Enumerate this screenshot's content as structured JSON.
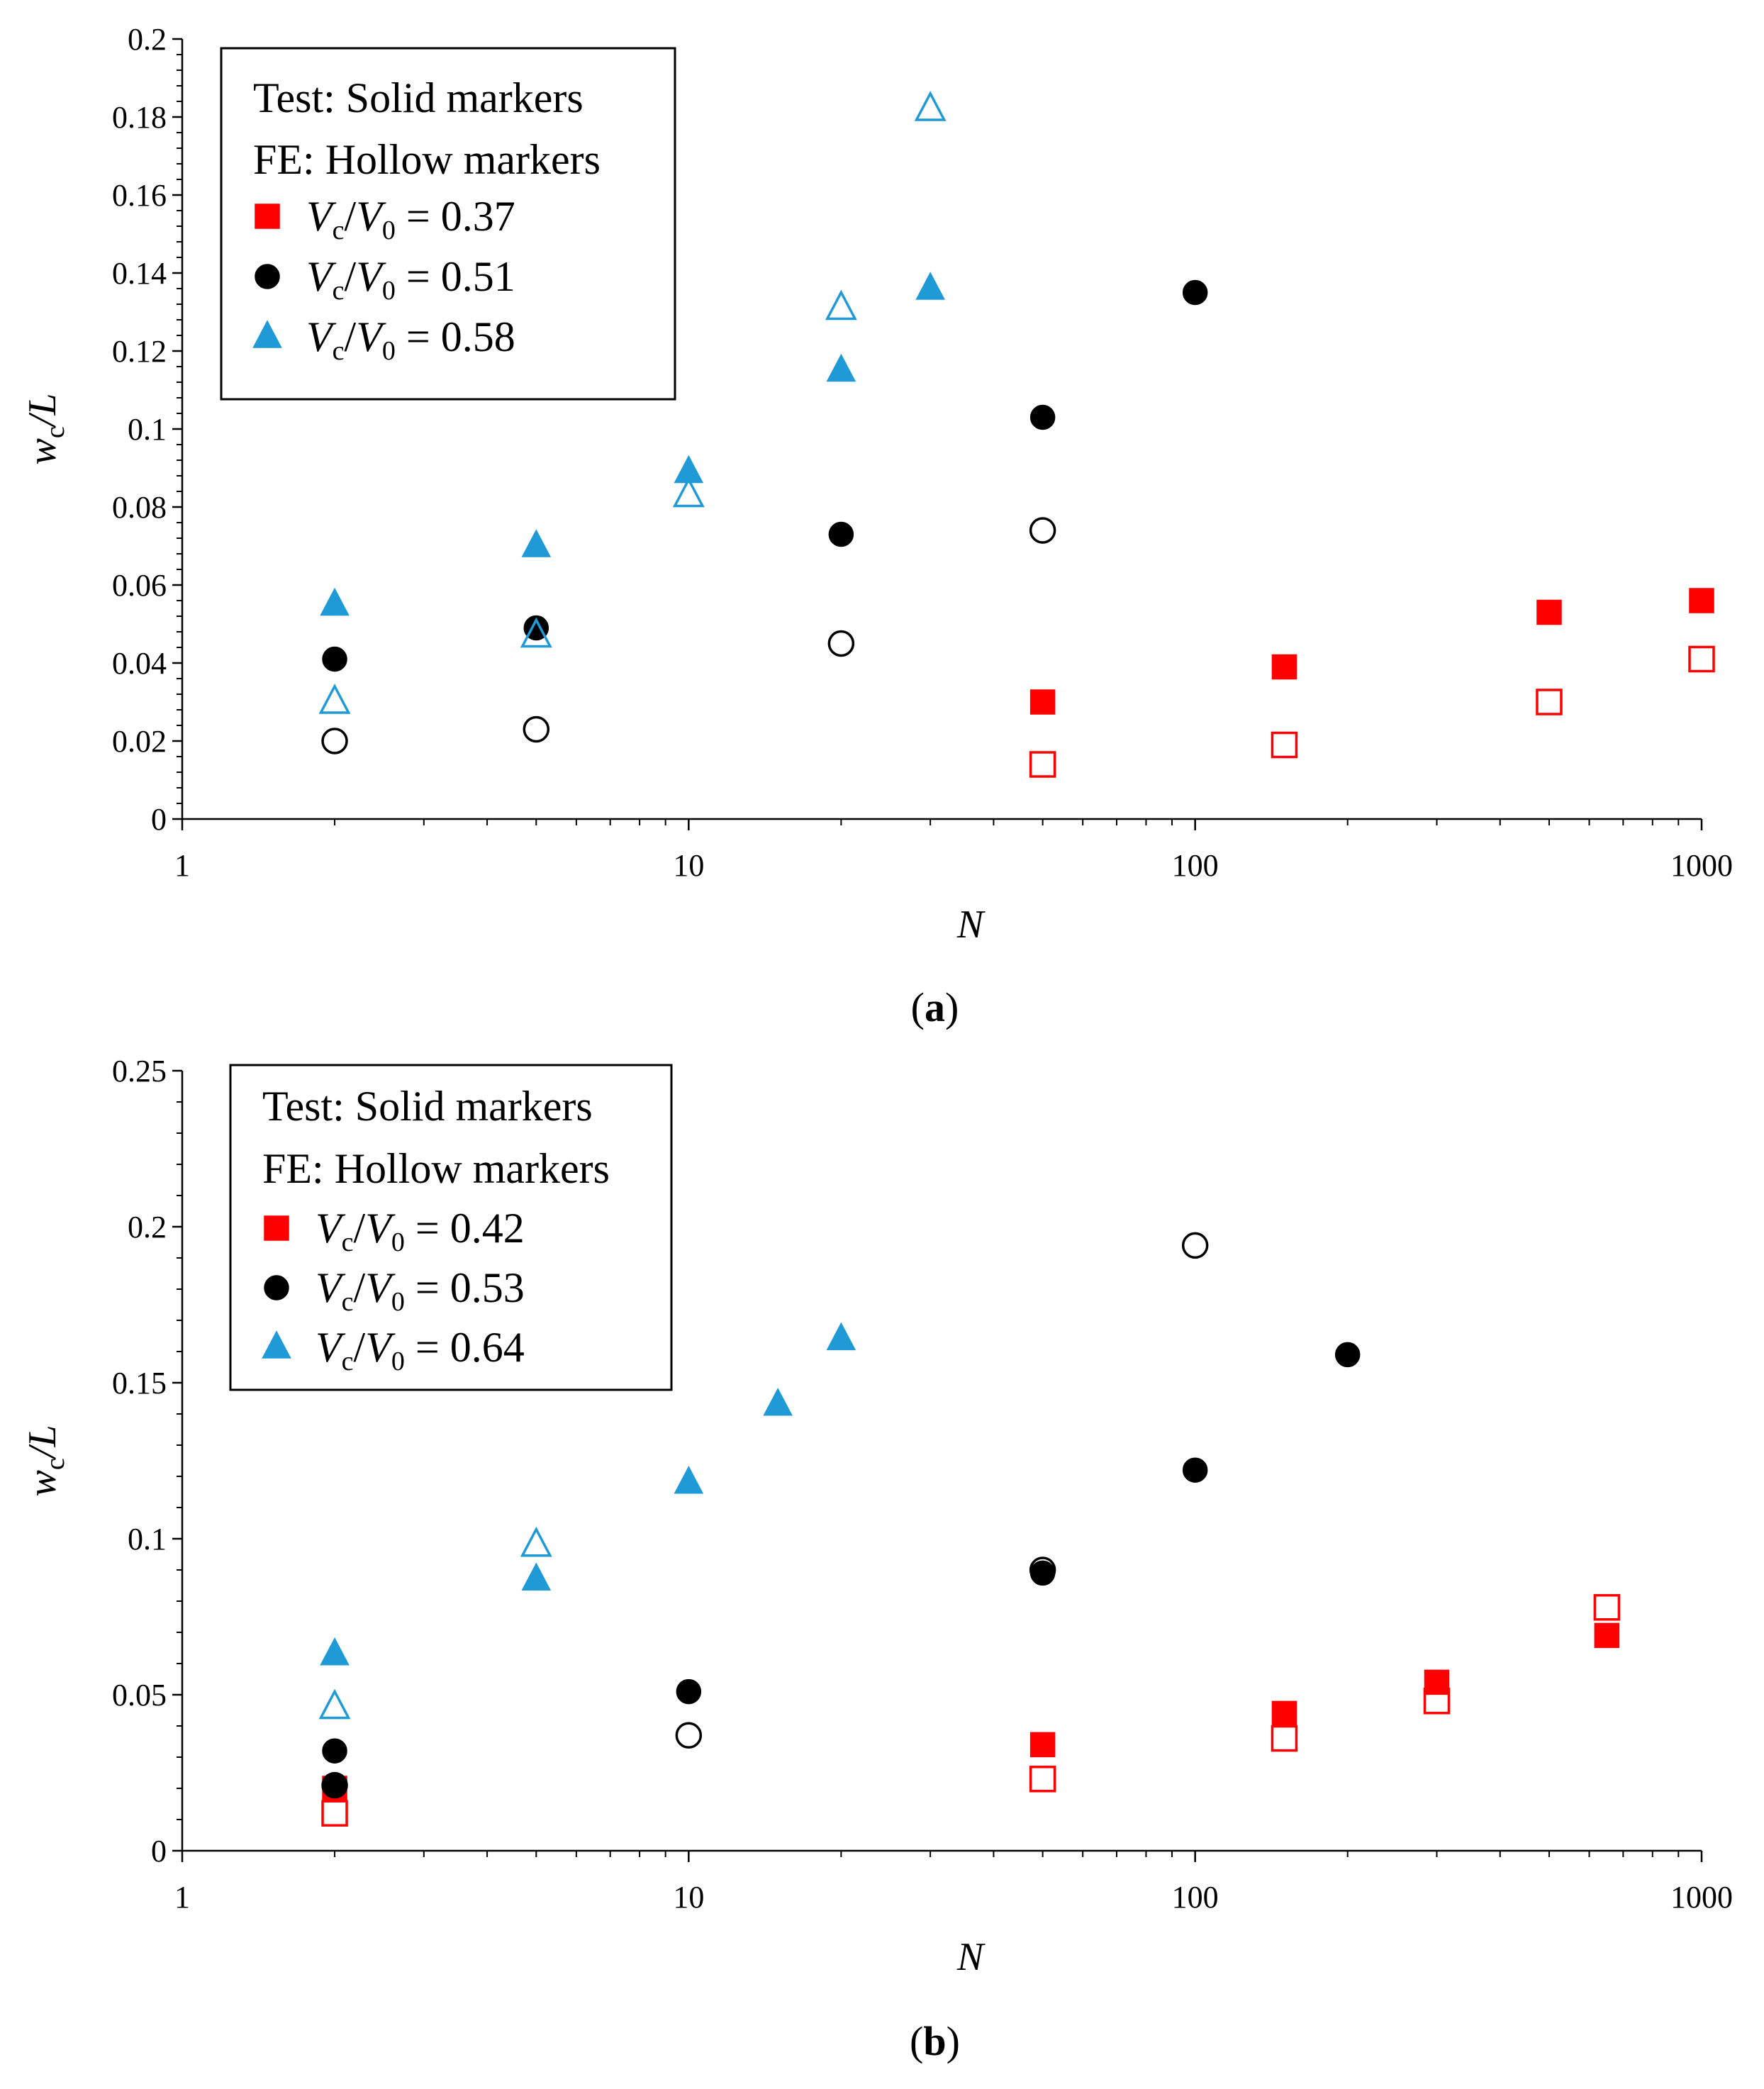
{
  "chart_data": [
    {
      "type": "scatter",
      "panel_label": "a",
      "xscale": "log",
      "xlim": [
        1,
        1000
      ],
      "ylim": [
        0,
        0.2
      ],
      "xlabel": "N",
      "ylabel": {
        "main": "w",
        "sub": "c",
        "tail": "/L"
      },
      "xticks": [
        1,
        10,
        100,
        1000
      ],
      "xtick_labels": [
        "1",
        "10",
        "100",
        "1000"
      ],
      "yticks": [
        0,
        0.02,
        0.04,
        0.06,
        0.08,
        0.1,
        0.12,
        0.14,
        0.16,
        0.18,
        0.2
      ],
      "ytick_labels": [
        "0",
        "0.02",
        "0.04",
        "0.06",
        "0.08",
        "0.1",
        "0.12",
        "0.14",
        "0.16",
        "0.18",
        "0.2"
      ],
      "legend": {
        "position": "top-left",
        "header": [
          "Test: Solid markers",
          "FE: Hollow markers"
        ],
        "entry_label": {
          "v1": "V",
          "s1": "c",
          "slash": "/",
          "v2": "V",
          "s2": "0",
          "eq": " = "
        }
      },
      "series": [
        {
          "name": "Vc/V0 = 0.37",
          "ratio": "0.37",
          "marker": "square",
          "color": "#ff0000",
          "test": {
            "x": [
              50,
              150,
              500,
              1000
            ],
            "y": [
              0.03,
              0.039,
              0.053,
              0.056
            ]
          },
          "fe": {
            "x": [
              50,
              150,
              500,
              1000
            ],
            "y": [
              0.014,
              0.019,
              0.03,
              0.041
            ]
          }
        },
        {
          "name": "Vc/V0 = 0.51",
          "ratio": "0.51",
          "marker": "circle",
          "color": "#000000",
          "test": {
            "x": [
              2,
              5,
              20,
              50,
              100
            ],
            "y": [
              0.041,
              0.049,
              0.073,
              0.103,
              0.135
            ]
          },
          "fe": {
            "x": [
              2,
              5,
              20,
              50
            ],
            "y": [
              0.02,
              0.023,
              0.045,
              0.074
            ]
          }
        },
        {
          "name": "Vc/V0 = 0.58",
          "ratio": "0.58",
          "marker": "triangle",
          "color": "#1f9ad6",
          "test": {
            "x": [
              2,
              5,
              10,
              20,
              30
            ],
            "y": [
              0.055,
              0.07,
              0.089,
              0.115,
              0.136
            ]
          },
          "fe": {
            "x": [
              2,
              5,
              10,
              20,
              30
            ],
            "y": [
              0.03,
              0.047,
              0.083,
              0.131,
              0.182
            ]
          }
        }
      ]
    },
    {
      "type": "scatter",
      "panel_label": "b",
      "xscale": "log",
      "xlim": [
        1,
        1000
      ],
      "ylim": [
        0,
        0.25
      ],
      "xlabel": "N",
      "ylabel": {
        "main": "w",
        "sub": "c",
        "tail": "/L"
      },
      "xticks": [
        1,
        10,
        100,
        1000
      ],
      "xtick_labels": [
        "1",
        "10",
        "100",
        "1000"
      ],
      "yticks": [
        0,
        0.05,
        0.1,
        0.15,
        0.2,
        0.25
      ],
      "ytick_labels": [
        "0",
        "0.05",
        "0.1",
        "0.15",
        "0.2",
        "0.25"
      ],
      "legend": {
        "position": "top-left",
        "header": [
          "Test: Solid markers",
          "FE: Hollow markers"
        ],
        "entry_label": {
          "v1": "V",
          "s1": "c",
          "slash": "/",
          "v2": "V",
          "s2": "0",
          "eq": " = "
        }
      },
      "series": [
        {
          "name": "Vc/V0 = 0.42",
          "ratio": "0.42",
          "marker": "square",
          "color": "#ff0000",
          "test": {
            "x": [
              2,
              50,
              150,
              300,
              650
            ],
            "y": [
              0.02,
              0.034,
              0.044,
              0.054,
              0.069
            ]
          },
          "fe": {
            "x": [
              2,
              50,
              150,
              300,
              650
            ],
            "y": [
              0.012,
              0.023,
              0.036,
              0.048,
              0.078
            ]
          }
        },
        {
          "name": "Vc/V0 = 0.53",
          "ratio": "0.53",
          "marker": "circle",
          "color": "#000000",
          "test": {
            "x": [
              2,
              2,
              10,
              50,
              100,
              200
            ],
            "y": [
              0.032,
              0.021,
              0.051,
              0.089,
              0.122,
              0.159
            ]
          },
          "fe": {
            "x": [
              2,
              10,
              50,
              100
            ],
            "y": [
              0.021,
              0.037,
              0.09,
              0.194
            ]
          }
        },
        {
          "name": "Vc/V0 = 0.64",
          "ratio": "0.64",
          "marker": "triangle",
          "color": "#1f9ad6",
          "test": {
            "x": [
              2,
              5,
              10,
              15,
              20
            ],
            "y": [
              0.063,
              0.087,
              0.118,
              0.143,
              0.164
            ]
          },
          "fe": {
            "x": [
              2,
              5
            ],
            "y": [
              0.046,
              0.098
            ]
          }
        }
      ]
    }
  ]
}
